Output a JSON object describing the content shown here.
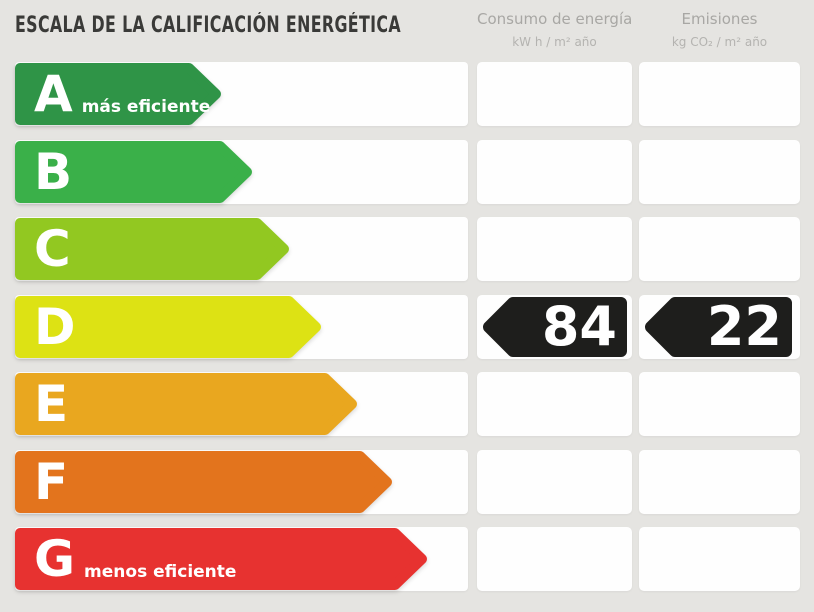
{
  "title": "ESCALA DE LA CALIFICACIÓN ENERGÉTICA",
  "columns": {
    "consumo": {
      "label": "Consumo de energía",
      "unit": "kW h / m² año"
    },
    "emisiones": {
      "label": "Emisiones",
      "unit": "kg CO₂ / m² año"
    }
  },
  "scale": {
    "rows": [
      {
        "letter": "A",
        "note": "más eficiente",
        "color": "#2f9447",
        "arrow_width": 207
      },
      {
        "letter": "B",
        "note": "",
        "color": "#3ab049",
        "arrow_width": 238
      },
      {
        "letter": "C",
        "note": "",
        "color": "#92c821",
        "arrow_width": 275
      },
      {
        "letter": "D",
        "note": "",
        "color": "#dde214",
        "arrow_width": 307
      },
      {
        "letter": "E",
        "note": "",
        "color": "#e9a71f",
        "arrow_width": 343
      },
      {
        "letter": "F",
        "note": "",
        "color": "#e3741d",
        "arrow_width": 378
      },
      {
        "letter": "G",
        "note": "menos eficiente",
        "color": "#e73230",
        "arrow_width": 413
      }
    ]
  },
  "rating": {
    "letter": "D",
    "row_index": 3,
    "consumo_value": "84",
    "emisiones_value": "22",
    "arrow_color": "#1e1e1c"
  },
  "colors": {
    "background": "#e5e4e1",
    "box_white": "#fefefe",
    "title_text": "#3a3a38",
    "header_text": "#a8a7a4",
    "unit_text": "#b4b3b0"
  },
  "chart_data": {
    "type": "bar",
    "title": "ESCALA DE LA CALIFICACIÓN ENERGÉTICA",
    "categories": [
      "A",
      "B",
      "C",
      "D",
      "E",
      "F",
      "G"
    ],
    "series": [
      {
        "name": "relative_arrow_length_px",
        "values": [
          207,
          238,
          275,
          307,
          343,
          378,
          413
        ]
      }
    ],
    "bar_colors": [
      "#2f9447",
      "#3ab049",
      "#92c821",
      "#dde214",
      "#e9a71f",
      "#e3741d",
      "#e73230"
    ],
    "annotations": [
      "A = más eficiente",
      "G = menos eficiente"
    ],
    "columns": [
      "Consumo de energía (kW h / m² año)",
      "Emisiones (kg CO₂ / m² año)"
    ],
    "highlighted_rating": {
      "letter": "D",
      "consumo_kwh_m2_ano": 84,
      "emisiones_kgco2_m2_ano": 22
    },
    "legend_position": "none",
    "grid": false
  }
}
